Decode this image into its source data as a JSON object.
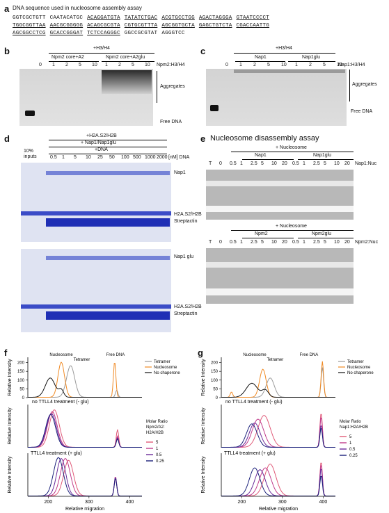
{
  "panel_a": {
    "letter": "a",
    "title": "DNA sequence used in nucleosome assembly assay",
    "lines": [
      [
        "GGTCGCTGTT",
        "CAATACATGC",
        "ACAGGATGTA",
        "TATATCTGAC",
        "ACGTGCCTGG",
        "AGACTAGGGA",
        "GTAATCCCCT"
      ],
      [
        "TGGCGGTTAA",
        "AACGCGGGGG",
        "ACAGCGCGTA",
        "CGTGCGTTTA",
        "AGCGGTGCTA",
        "GAGCTGTCTA",
        "CGACCAATTG"
      ],
      [
        "AGCGGCCTCG",
        "GCACCGGGAT",
        "TCTCCAGGGC",
        "GGCCGCGTAT",
        "AGGGTCC"
      ]
    ]
  },
  "panel_b": {
    "letter": "b",
    "header": "+H3/H4",
    "group1": "Npm2 core+A2",
    "group2": "Npm2 core+A2glu",
    "ratios": [
      "0",
      "1",
      "2",
      "5",
      "10",
      "1",
      "2",
      "5",
      "10"
    ],
    "ratio_label": "Npm2:H3/H4",
    "label_aggregates": "Aggregates",
    "label_free": "Free DNA"
  },
  "panel_c": {
    "letter": "c",
    "header": "+H3/H4",
    "group1": "Nap1",
    "group2": "Nap1glu",
    "ratios": [
      "0",
      "1",
      "2",
      "5",
      "10",
      "1",
      "2",
      "5",
      "10"
    ],
    "ratio_label": "Nap1:H3/H4",
    "label_aggregates": "Aggregates",
    "label_free": "Free DNA"
  },
  "panel_d": {
    "letter": "d",
    "header1": "+H2A.S2/H2B",
    "header2": "+ Nap1/Nap1glu",
    "header3": "+DNA",
    "inputs": "10% inputs",
    "conc": [
      "0.5",
      "1",
      "5",
      "10",
      "25",
      "50",
      "100",
      "500",
      "1000",
      "2000"
    ],
    "conc_label": "[nM] DNA",
    "top_labels": [
      "Nap1",
      "H2A.S2/H2B",
      "Streptactin"
    ],
    "bottom_labels": [
      "Nap1 glu",
      "H2A.S2/H2B",
      "Streptactin"
    ]
  },
  "panel_e": {
    "letter": "e",
    "title": "Nucleosome disassembly assay",
    "header": "+ Nucleosome",
    "top_group1": "Nap1",
    "top_group2": "Nap1glu",
    "top_ratio_label": "Nap1:Nuc",
    "bottom_group1": "Npm2",
    "bottom_group2": "Npm2glu",
    "bottom_ratio_label": "Npm2:Nuc",
    "lanes": [
      "T",
      "0",
      "0.5",
      "1",
      "2.5",
      "5",
      "10",
      "20",
      "0.5",
      "1",
      "2.5",
      "5",
      "10",
      "20"
    ]
  },
  "panel_f": {
    "letter": "f",
    "ylabel": "Relative Intensity",
    "xlabel": "Relative migration",
    "xticks": [
      "200",
      "300",
      "400"
    ],
    "top_yticks": [
      "0",
      "50",
      "100",
      "150",
      "200"
    ],
    "top_annotations": {
      "nucleosome": "Nucleosome",
      "tetramer": "Tetramer",
      "free": "Free DNA"
    },
    "top_legend": [
      "Tetramer",
      "Nucleosome",
      "No chaperone"
    ],
    "mid_title": "no TTLL4 treatment (- glu)",
    "bottom_title": "TTLL4 treatment (+ glu)",
    "ratio_title": "Molar Ratio Npm2/A2: H2A/H2B",
    "ratio_values": [
      "5",
      "1",
      "0.5",
      "0.25"
    ]
  },
  "panel_g": {
    "letter": "g",
    "ylabel": "Relative Intensity",
    "xlabel": "Relative migration",
    "xticks": [
      "200",
      "300",
      "400"
    ],
    "top_yticks": [
      "0",
      "50",
      "100",
      "150",
      "200"
    ],
    "top_annotations": {
      "nucleosome": "Nucleosome",
      "tetramer": "Tetramer",
      "free": "Free DNA"
    },
    "top_legend": [
      "Tetramer",
      "Nucleosome",
      "No chaperone"
    ],
    "mid_title": "no TTLL4 treatment (- glu)",
    "bottom_title": "TTLL4 treatment (+ glu)",
    "ratio_title": "Molar Ratio Nap1:H2A/H2B",
    "ratio_values": [
      "5",
      "1",
      "0.5",
      "0.25"
    ]
  },
  "colors": {
    "tetramer": "#9a9a9a",
    "nucleosome": "#f08a24",
    "nochap": "#111111",
    "r5": "#e05a78",
    "r1": "#c03a8a",
    "r05": "#6a2a9a",
    "r025": "#1a1f7a"
  }
}
